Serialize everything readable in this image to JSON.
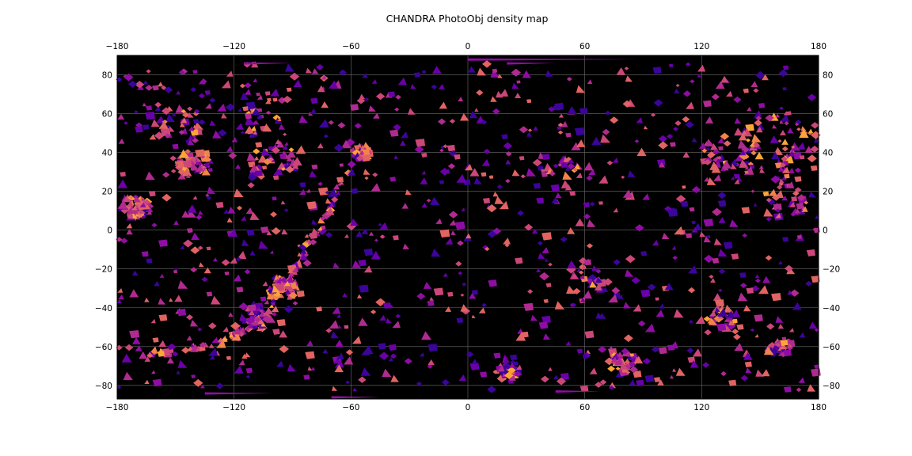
{
  "chart_data": {
    "type": "heatmap",
    "title": "CHANDRA PhotoObj density map",
    "xlabel": "",
    "ylabel": "",
    "xlim": [
      -180,
      180
    ],
    "ylim": [
      -87,
      90
    ],
    "xticks": [
      -180,
      -120,
      -60,
      0,
      60,
      120,
      180
    ],
    "yticks": [
      -80,
      -60,
      -40,
      -20,
      0,
      20,
      40,
      60,
      80
    ],
    "xtick_labels": [
      "−180",
      "−120",
      "−60",
      "0",
      "60",
      "120",
      "180"
    ],
    "ytick_labels": [
      "−80",
      "−60",
      "−40",
      "−20",
      "0",
      "20",
      "40",
      "60",
      "80"
    ],
    "grid": true,
    "background": "#000000",
    "colormap": "plasma",
    "palette": [
      "#3b049a",
      "#6a00a8",
      "#8f0da4",
      "#b12a90",
      "#cc4778",
      "#e16462",
      "#f2844b",
      "#fca636"
    ],
    "grid_color": "#6e6e6e",
    "clusters": [
      {
        "lon": -170,
        "lat": 12,
        "spread": 6,
        "density": 0.95
      },
      {
        "lon": -142,
        "lat": 34,
        "spread": 8,
        "density": 0.8
      },
      {
        "lon": -100,
        "lat": 36,
        "spread": 10,
        "density": 0.7
      },
      {
        "lon": -110,
        "lat": 60,
        "spread": 12,
        "density": 0.6
      },
      {
        "lon": -148,
        "lat": 54,
        "spread": 10,
        "density": 0.6
      },
      {
        "lon": -95,
        "lat": -30,
        "spread": 6,
        "density": 0.9
      },
      {
        "lon": -108,
        "lat": -45,
        "spread": 6,
        "density": 0.6
      },
      {
        "lon": 160,
        "lat": 45,
        "spread": 16,
        "density": 0.75
      },
      {
        "lon": 135,
        "lat": 40,
        "spread": 12,
        "density": 0.7
      },
      {
        "lon": 165,
        "lat": 18,
        "spread": 10,
        "density": 0.5
      },
      {
        "lon": 130,
        "lat": -45,
        "spread": 6,
        "density": 0.5
      },
      {
        "lon": 80,
        "lat": -68,
        "spread": 6,
        "density": 0.7
      },
      {
        "lon": 20,
        "lat": -72,
        "spread": 5,
        "density": 0.6
      },
      {
        "lon": 45,
        "lat": 30,
        "spread": 10,
        "density": 0.4
      },
      {
        "lon": 60,
        "lat": -25,
        "spread": 10,
        "density": 0.4
      },
      {
        "lon": -55,
        "lat": 40,
        "spread": 4,
        "density": 0.5
      },
      {
        "lon": 160,
        "lat": -60,
        "spread": 5,
        "density": 0.5
      }
    ],
    "galactic_arc": [
      {
        "lon": -55,
        "lat": 40
      },
      {
        "lon": -65,
        "lat": 25
      },
      {
        "lon": -72,
        "lat": 10
      },
      {
        "lon": -80,
        "lat": -5
      },
      {
        "lon": -88,
        "lat": -18
      },
      {
        "lon": -95,
        "lat": -28
      },
      {
        "lon": -103,
        "lat": -40
      },
      {
        "lon": -115,
        "lat": -52
      },
      {
        "lon": -128,
        "lat": -58
      },
      {
        "lon": -150,
        "lat": -63
      },
      {
        "lon": -170,
        "lat": -64
      }
    ],
    "polar_streaks": [
      {
        "lon_start": 0,
        "lon_end": 88,
        "lat": 88
      },
      {
        "lon_start": 20,
        "lon_end": 45,
        "lat": 86
      },
      {
        "lon_start": -115,
        "lon_end": -90,
        "lat": 86
      },
      {
        "lon_start": -135,
        "lon_end": -100,
        "lat": -84
      },
      {
        "lon_start": -70,
        "lon_end": -45,
        "lat": -86
      },
      {
        "lon_start": 45,
        "lon_end": 68,
        "lat": -83
      }
    ]
  }
}
